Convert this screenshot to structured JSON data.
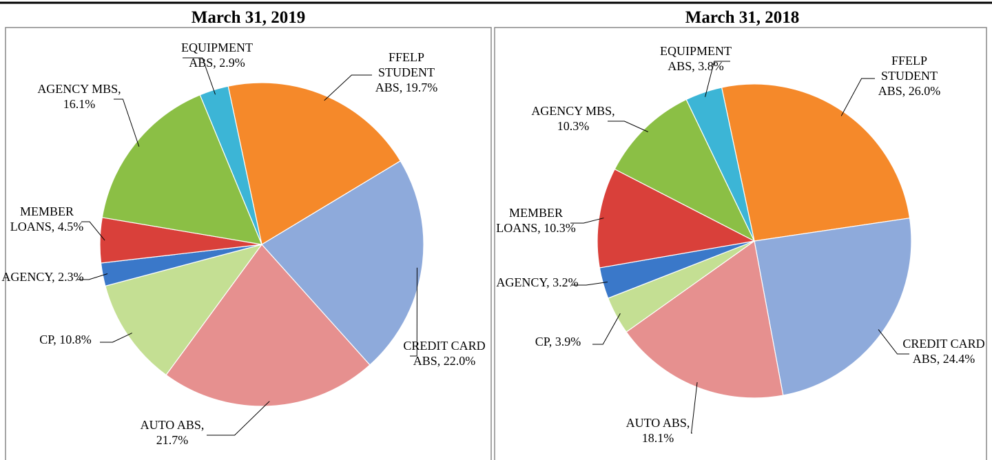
{
  "chart_data": [
    {
      "type": "pie",
      "title": "March 31, 2019",
      "categories": [
        "FFELP STUDENT ABS,",
        "CREDIT CARD ABS,",
        "AUTO ABS,",
        "CP,",
        "AGENCY,",
        "MEMBER LOANS,",
        "AGENCY MBS,",
        "EQUIPMENT ABS,"
      ],
      "values": [
        19.7,
        22.0,
        21.7,
        10.8,
        2.3,
        4.5,
        16.1,
        2.9
      ],
      "value_labels": [
        "19.7%",
        "22.0%",
        "21.7%",
        "10.8%",
        "2.3%",
        "4.5%",
        "16.1%",
        "2.9%"
      ],
      "colors": [
        "#f5892a",
        "#8eaadb",
        "#e6908f",
        "#c4df93",
        "#3a78c9",
        "#d9403a",
        "#8bbf45",
        "#3cb5d6"
      ]
    },
    {
      "type": "pie",
      "title": "March 31, 2018",
      "categories": [
        "FFELP STUDENT ABS,",
        "CREDIT CARD ABS,",
        "AUTO ABS,",
        "CP,",
        "AGENCY,",
        "MEMBER LOANS,",
        "AGENCY MBS,",
        "EQUIPMENT ABS,"
      ],
      "values": [
        26.0,
        24.4,
        18.1,
        3.9,
        3.2,
        10.3,
        10.3,
        3.8
      ],
      "value_labels": [
        "26.0%",
        "24.4%",
        "18.1%",
        "3.9%",
        "3.2%",
        "10.3%",
        "10.3%",
        "3.8%"
      ],
      "colors": [
        "#f5892a",
        "#8eaadb",
        "#e6908f",
        "#c4df93",
        "#3a78c9",
        "#d9403a",
        "#8bbf45",
        "#3cb5d6"
      ]
    }
  ]
}
